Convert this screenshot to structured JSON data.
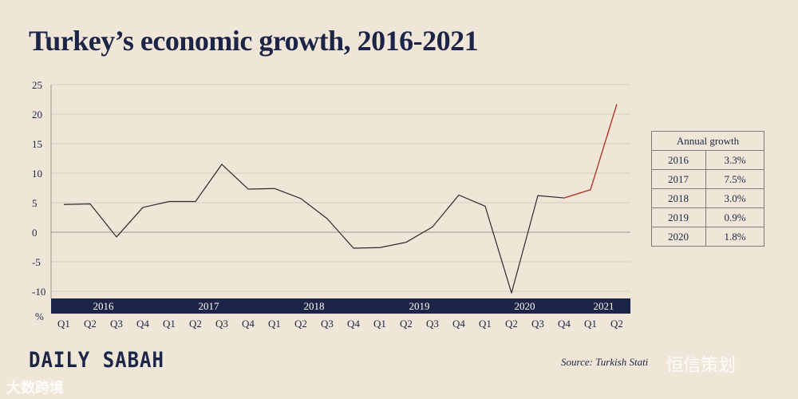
{
  "title": "Turkey’s economic growth, 2016-2021",
  "brand": "DAILY SABAH",
  "source": "Source: Turkish Stati",
  "watermark_left": "大数跨境",
  "watermark_right": "恒信策划",
  "colors": {
    "background": "#efe6d8",
    "navy": "#1c2547",
    "line": "#2b2b2b",
    "highlight": "#b23a2a",
    "grid": "#d2ccc1"
  },
  "annual_table": {
    "header": "Annual growth",
    "rows": [
      {
        "year": "2016",
        "value": "3.3%"
      },
      {
        "year": "2017",
        "value": "7.5%"
      },
      {
        "year": "2018",
        "value": "3.0%"
      },
      {
        "year": "2019",
        "value": "0.9%"
      },
      {
        "year": "2020",
        "value": "1.8%"
      }
    ]
  },
  "chart_data": {
    "type": "line",
    "title": "Turkey’s economic growth, 2016-2021",
    "ylabel": "%",
    "ylim": [
      -10,
      25
    ],
    "yticks": [
      25,
      20,
      15,
      10,
      5,
      0,
      -5,
      -10
    ],
    "grid": true,
    "x": [
      "Q1",
      "Q2",
      "Q3",
      "Q4",
      "Q1",
      "Q2",
      "Q3",
      "Q4",
      "Q1",
      "Q2",
      "Q3",
      "Q4",
      "Q1",
      "Q2",
      "Q3",
      "Q4",
      "Q1",
      "Q2",
      "Q3",
      "Q4",
      "Q1",
      "Q2"
    ],
    "years": [
      "2016",
      "2017",
      "2018",
      "2019",
      "2020",
      "2021"
    ],
    "values": [
      4.7,
      4.8,
      -0.8,
      4.2,
      5.2,
      5.2,
      11.5,
      7.3,
      7.4,
      5.7,
      2.3,
      -2.7,
      -2.6,
      -1.7,
      0.9,
      6.3,
      4.4,
      -10.3,
      6.2,
      5.8,
      7.2,
      21.7
    ],
    "highlight_from_index": 19
  }
}
